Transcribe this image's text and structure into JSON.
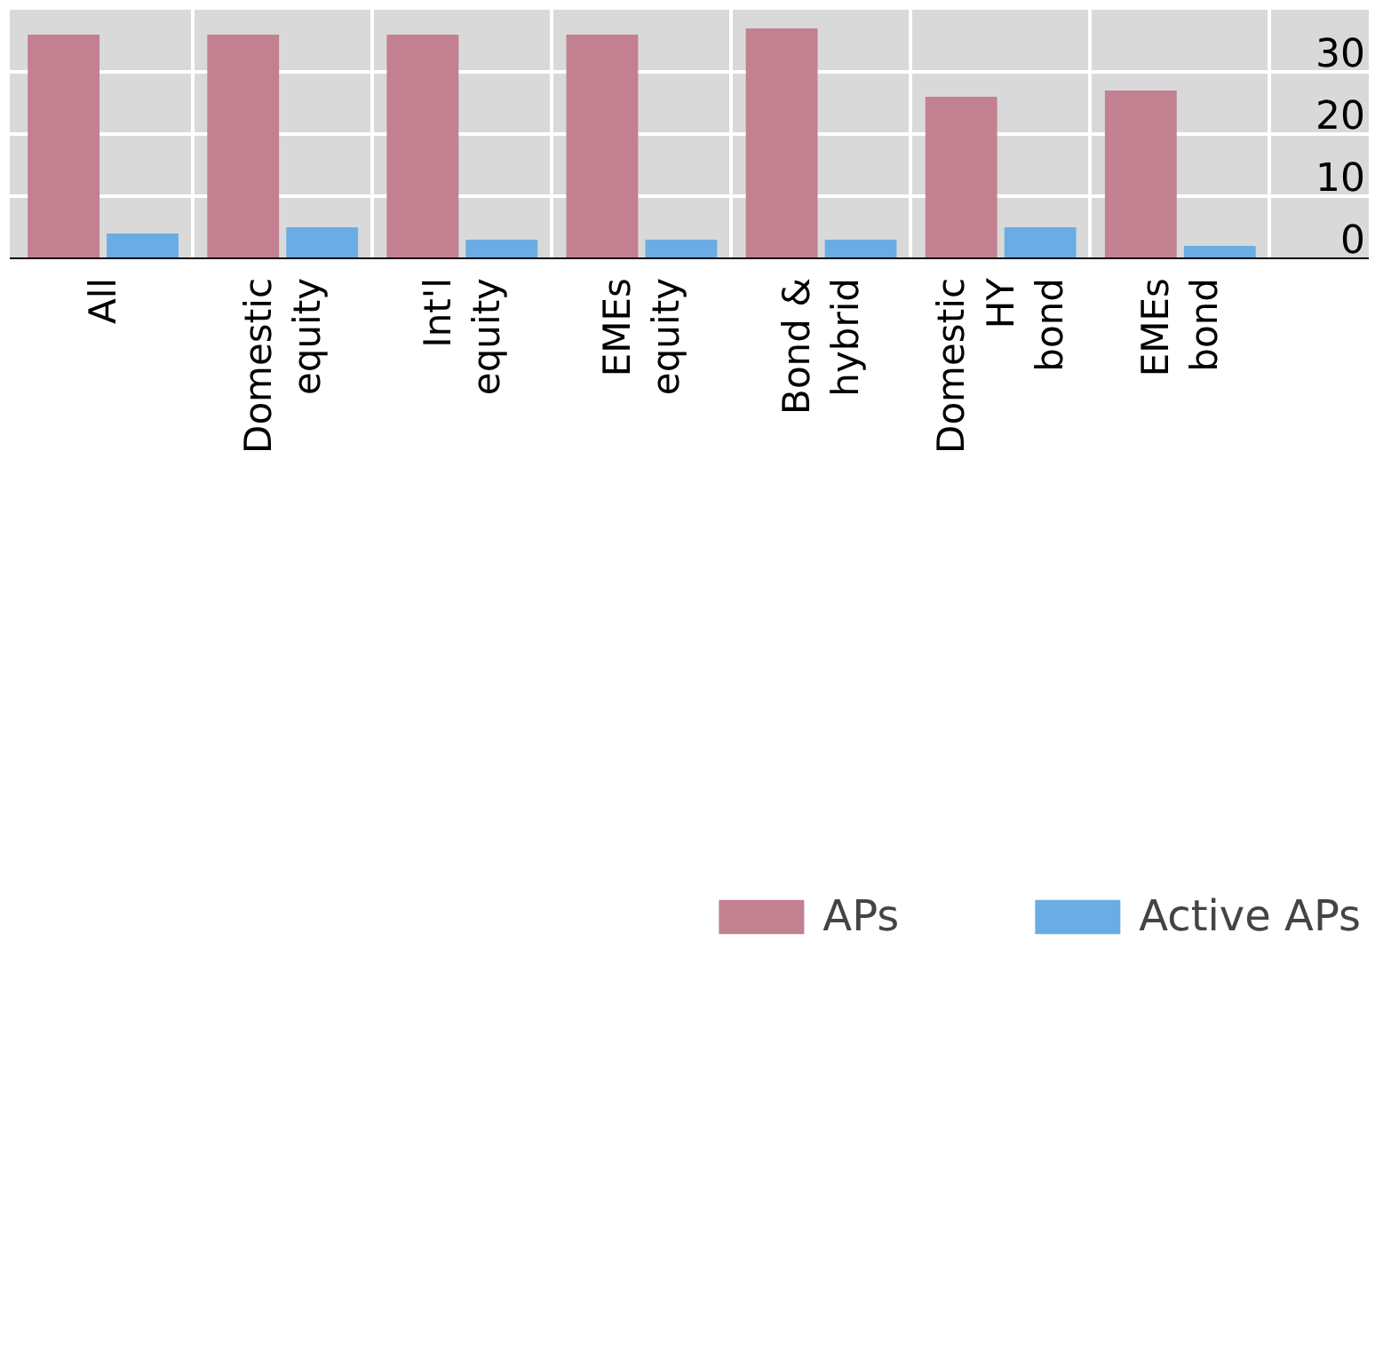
{
  "chart_data": {
    "type": "bar",
    "categories": [
      "All",
      "Domestic\nequity",
      "Int'l\nequity",
      "EMEs\nequity",
      "Bond &\nhybrid",
      "Domestic\nHY\nbond",
      "EMEs\nbond"
    ],
    "series": [
      {
        "name": "APs",
        "color": "#c38091",
        "values": [
          36,
          36,
          36,
          36,
          37,
          26,
          27
        ]
      },
      {
        "name": "Active APs",
        "color": "#6aade4",
        "values": [
          4,
          5,
          3,
          3,
          3,
          5,
          2
        ]
      }
    ],
    "ylim": [
      0,
      40
    ],
    "yticks": [
      0,
      10,
      20,
      30
    ],
    "grid": true,
    "legend": "bottom"
  }
}
